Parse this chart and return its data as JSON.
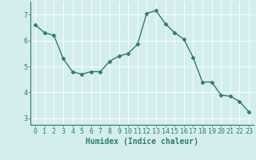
{
  "x": [
    0,
    1,
    2,
    3,
    4,
    5,
    6,
    7,
    8,
    9,
    10,
    11,
    12,
    13,
    14,
    15,
    16,
    17,
    18,
    19,
    20,
    21,
    22,
    23
  ],
  "y": [
    6.6,
    6.3,
    6.2,
    5.3,
    4.8,
    4.7,
    4.8,
    4.8,
    5.2,
    5.4,
    5.5,
    5.85,
    7.05,
    7.15,
    6.65,
    6.3,
    6.05,
    5.35,
    4.4,
    4.4,
    3.9,
    3.85,
    3.65,
    3.25
  ],
  "line_color": "#2e7d6e",
  "marker": "D",
  "marker_size": 2.5,
  "bg_color": "#d4eeee",
  "grid_color": "#ffffff",
  "grid_linewidth": 0.6,
  "xlabel": "Humidex (Indice chaleur)",
  "xlabel_fontsize": 7,
  "yticks": [
    3,
    4,
    5,
    6,
    7
  ],
  "xticks": [
    0,
    1,
    2,
    3,
    4,
    5,
    6,
    7,
    8,
    9,
    10,
    11,
    12,
    13,
    14,
    15,
    16,
    17,
    18,
    19,
    20,
    21,
    22,
    23
  ],
  "xlim": [
    -0.5,
    23.5
  ],
  "ylim": [
    2.75,
    7.5
  ],
  "tick_fontsize": 6,
  "linewidth": 1.0,
  "spine_color": "#2e7d6e",
  "tick_color": "#2e7d6e"
}
